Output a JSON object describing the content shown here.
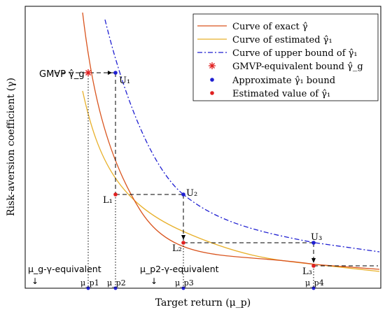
{
  "axes": {
    "xlabel": "Target return (μ_p)",
    "ylabel": "Risk-aversion coefficient (γ)"
  },
  "legend": {
    "items": [
      {
        "label": "Curve of exact γ̂",
        "marker": "line",
        "color": "#d9541e"
      },
      {
        "label": "Curve of estimated γ̂₁",
        "marker": "line",
        "color": "#e8b02a"
      },
      {
        "label": "Curve of upper bound of γ̂₁",
        "marker": "dashdot",
        "color": "#1f1fd1"
      },
      {
        "label": "GMVP-equivalent bound γ̂_g",
        "marker": "asterisk",
        "color": "#e02020"
      },
      {
        "label": "Approximate γ̂₁ bound",
        "marker": "dot",
        "color": "#1f1fd1"
      },
      {
        "label": "Estimated value of γ̂₁",
        "marker": "dot",
        "color": "#e02020"
      }
    ]
  },
  "annotations": {
    "gmvp": "GMVP γ̂_g",
    "mu_g_equiv": "μ_g-γ-equivalent",
    "mu_p2_equiv": "μ_p2-γ-equivalent",
    "arrow_glyph": "↓"
  },
  "points": {
    "U1": "U₁",
    "U2": "U₂",
    "U3": "U₃",
    "L1": "L₁",
    "L2": "L₂",
    "L3": "L₃"
  },
  "ticks": {
    "mu_p1": "μ_p1",
    "mu_p2": "μ_p2",
    "mu_p3": "μ_p3",
    "mu_p4": "μ_p4"
  },
  "colors": {
    "exact": "#d9541e",
    "estimated": "#e8b02a",
    "upper": "#1f1fd1",
    "red_marker": "#e02020",
    "blue_marker": "#1f1fd1"
  }
}
